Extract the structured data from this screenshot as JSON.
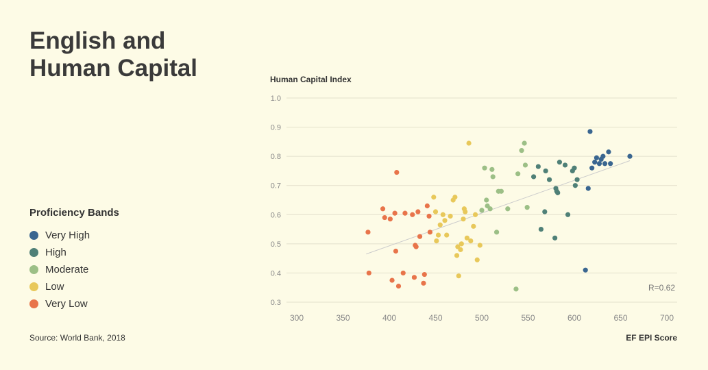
{
  "title": "English and\nHuman Capital",
  "legend": {
    "title": "Proficiency Bands",
    "items": [
      {
        "label": "Very High",
        "color": "#3a6690"
      },
      {
        "label": "High",
        "color": "#4f8077"
      },
      {
        "label": "Moderate",
        "color": "#9cbf86"
      },
      {
        "label": "Low",
        "color": "#e8c85a"
      },
      {
        "label": "Very Low",
        "color": "#e8744a"
      }
    ]
  },
  "source": "Source: World Bank, 2018",
  "chart_data": {
    "type": "scatter",
    "title": "",
    "xlabel": "EF EPI Score",
    "ylabel": "Human Capital Index",
    "xlim": [
      300,
      700
    ],
    "ylim": [
      0.3,
      1.0
    ],
    "xticks": [
      "300",
      "350",
      "400",
      "450",
      "500",
      "550",
      "600",
      "650",
      "700"
    ],
    "yticks": [
      "0.3",
      "0.4",
      "0.5",
      "0.6",
      "0.7",
      "0.8",
      "0.9",
      "1.0"
    ],
    "grid": "horizontal",
    "annotation": "R=0.62",
    "trendline": {
      "x": [
        375,
        660
      ],
      "y": [
        0.465,
        0.785
      ],
      "color": "#cccccc"
    },
    "series": [
      {
        "name": "Very High",
        "color": "#3a6690",
        "points": [
          [
            617,
            0.885
          ],
          [
            615,
            0.69
          ],
          [
            612,
            0.41
          ],
          [
            619,
            0.76
          ],
          [
            622,
            0.78
          ],
          [
            624,
            0.795
          ],
          [
            627,
            0.775
          ],
          [
            629,
            0.79
          ],
          [
            631,
            0.8
          ],
          [
            633,
            0.775
          ],
          [
            637,
            0.815
          ],
          [
            639,
            0.775
          ],
          [
            660,
            0.8
          ]
        ]
      },
      {
        "name": "High",
        "color": "#4f8077",
        "points": [
          [
            556,
            0.73
          ],
          [
            561,
            0.765
          ],
          [
            564,
            0.55
          ],
          [
            568,
            0.61
          ],
          [
            569,
            0.75
          ],
          [
            573,
            0.72
          ],
          [
            579,
            0.52
          ],
          [
            580,
            0.69
          ],
          [
            581,
            0.68
          ],
          [
            582,
            0.675
          ],
          [
            584,
            0.78
          ],
          [
            590,
            0.77
          ],
          [
            593,
            0.6
          ],
          [
            598,
            0.75
          ],
          [
            600,
            0.76
          ],
          [
            601,
            0.7
          ],
          [
            603,
            0.72
          ]
        ]
      },
      {
        "name": "Moderate",
        "color": "#9cbf86",
        "points": [
          [
            500,
            0.615
          ],
          [
            503,
            0.76
          ],
          [
            505,
            0.65
          ],
          [
            506,
            0.63
          ],
          [
            509,
            0.62
          ],
          [
            511,
            0.755
          ],
          [
            512,
            0.73
          ],
          [
            516,
            0.54
          ],
          [
            518,
            0.68
          ],
          [
            521,
            0.68
          ],
          [
            528,
            0.62
          ],
          [
            537,
            0.345
          ],
          [
            539,
            0.74
          ],
          [
            543,
            0.82
          ],
          [
            546,
            0.845
          ],
          [
            547,
            0.77
          ],
          [
            549,
            0.625
          ]
        ]
      },
      {
        "name": "Low",
        "color": "#e8c85a",
        "points": [
          [
            448,
            0.66
          ],
          [
            450,
            0.61
          ],
          [
            451,
            0.51
          ],
          [
            453,
            0.53
          ],
          [
            455,
            0.565
          ],
          [
            458,
            0.6
          ],
          [
            460,
            0.58
          ],
          [
            462,
            0.53
          ],
          [
            466,
            0.595
          ],
          [
            469,
            0.65
          ],
          [
            471,
            0.66
          ],
          [
            473,
            0.46
          ],
          [
            474,
            0.49
          ],
          [
            475,
            0.39
          ],
          [
            477,
            0.48
          ],
          [
            478,
            0.5
          ],
          [
            480,
            0.585
          ],
          [
            481,
            0.62
          ],
          [
            482,
            0.61
          ],
          [
            484,
            0.52
          ],
          [
            486,
            0.845
          ],
          [
            488,
            0.51
          ],
          [
            491,
            0.56
          ],
          [
            493,
            0.6
          ],
          [
            495,
            0.445
          ],
          [
            498,
            0.495
          ]
        ]
      },
      {
        "name": "Very Low",
        "color": "#e8744a",
        "points": [
          [
            377,
            0.54
          ],
          [
            378,
            0.4
          ],
          [
            393,
            0.62
          ],
          [
            395,
            0.59
          ],
          [
            401,
            0.585
          ],
          [
            403,
            0.375
          ],
          [
            406,
            0.605
          ],
          [
            407,
            0.475
          ],
          [
            408,
            0.745
          ],
          [
            410,
            0.355
          ],
          [
            415,
            0.4
          ],
          [
            417,
            0.605
          ],
          [
            425,
            0.6
          ],
          [
            427,
            0.385
          ],
          [
            428,
            0.495
          ],
          [
            429,
            0.49
          ],
          [
            431,
            0.61
          ],
          [
            433,
            0.525
          ],
          [
            437,
            0.365
          ],
          [
            438,
            0.395
          ],
          [
            441,
            0.63
          ],
          [
            443,
            0.595
          ],
          [
            444,
            0.54
          ]
        ]
      }
    ]
  }
}
